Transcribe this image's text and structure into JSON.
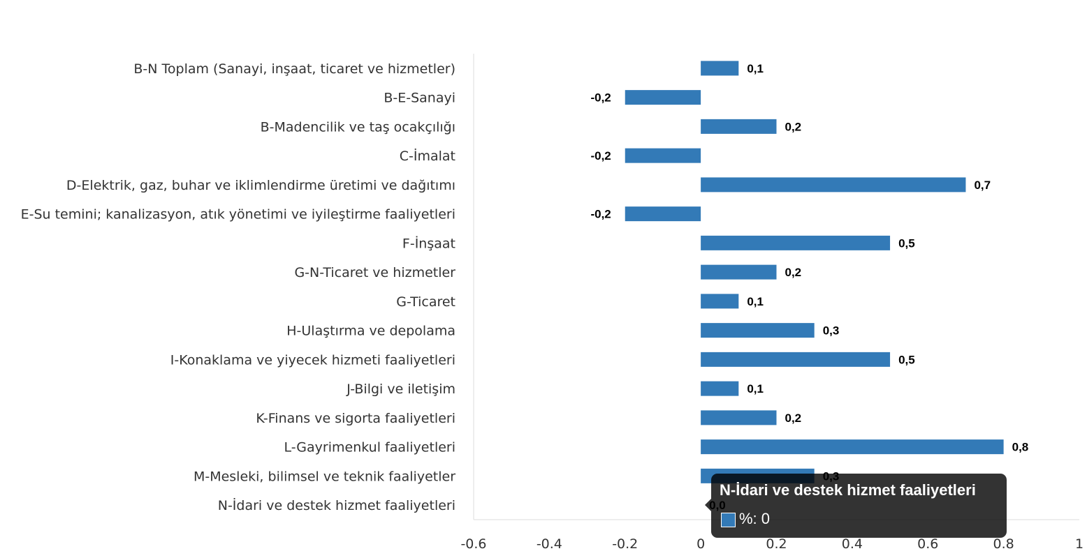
{
  "chart_data": {
    "type": "bar",
    "orientation": "horizontal",
    "categories": [
      "B-N Toplam (Sanayi, inşaat, ticaret ve hizmetler)",
      "B-E-Sanayi",
      "B-Madencilik ve taş ocakçılığı",
      "C-İmalat",
      "D-Elektrik, gaz, buhar ve iklimlendirme üretimi ve dağıtımı",
      "E-Su temini; kanalizasyon, atık yönetimi ve iyileştirme faaliyetleri",
      "F-İnşaat",
      "G-N-Ticaret ve hizmetler",
      "G-Ticaret",
      "H-Ulaştırma ve depolama",
      "I-Konaklama ve yiyecek hizmeti faaliyetleri",
      "J-Bilgi ve iletişim",
      "K-Finans ve sigorta faaliyetleri",
      "L-Gayrimenkul faaliyetleri",
      "M-Mesleki, bilimsel ve teknik faaliyetler",
      "N-İdari ve destek hizmet faaliyetleri"
    ],
    "values": [
      0.1,
      -0.2,
      0.2,
      -0.2,
      0.7,
      -0.2,
      0.5,
      0.2,
      0.1,
      0.3,
      0.5,
      0.1,
      0.2,
      0.8,
      0.3,
      0.0
    ],
    "data_labels": [
      "0,1",
      "-0,2",
      "0,2",
      "-0,2",
      "0,7",
      "-0,2",
      "0,5",
      "0,2",
      "0,1",
      "0,3",
      "0,5",
      "0,1",
      "0,2",
      "0,8",
      "0,3",
      "0,0"
    ],
    "xlim": [
      -0.6,
      1
    ],
    "x_ticks": [
      "-0.6",
      "-0.4",
      "-0.2",
      "0",
      "0.2",
      "0.4",
      "0.6",
      "0.8",
      "1"
    ],
    "x_tick_values": [
      -0.6,
      -0.4,
      -0.2,
      0,
      0.2,
      0.4,
      0.6,
      0.8,
      1
    ],
    "grid": false,
    "bar_color": "#337ab7",
    "title": "",
    "xlabel": "",
    "ylabel": ""
  },
  "tooltip": {
    "title": "N-İdari ve destek hizmet faaliyetleri",
    "body": "%: 0",
    "swatch_color": "#337ab7"
  }
}
